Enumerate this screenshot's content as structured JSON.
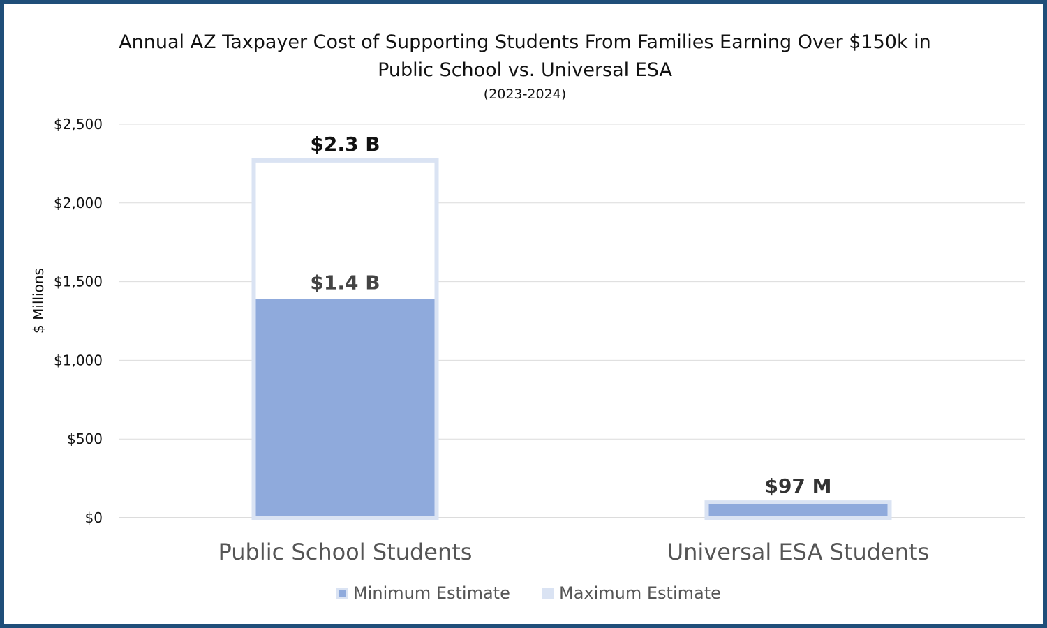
{
  "chart_data": {
    "type": "bar",
    "title_line1": "Annual AZ Taxpayer Cost of Supporting Students From Families Earning Over $150k in",
    "title_line2": "Public School vs. Universal ESA",
    "subtitle": "(2023-2024)",
    "ylabel": "$ Millions",
    "xlabel": "",
    "ylim": [
      0,
      2500
    ],
    "yticks": [
      {
        "value": 0,
        "label": "$0"
      },
      {
        "value": 500,
        "label": "$500"
      },
      {
        "value": 1000,
        "label": "$1,000"
      },
      {
        "value": 1500,
        "label": "$1,500"
      },
      {
        "value": 2000,
        "label": "$2,000"
      },
      {
        "value": 2500,
        "label": "$2,500"
      }
    ],
    "grid": true,
    "legend_position": "bottom",
    "categories": [
      "Public School Students",
      "Universal ESA Students"
    ],
    "series": [
      {
        "name": "Minimum Estimate",
        "color": "#8faadc",
        "values": [
          1390,
          88
        ]
      },
      {
        "name": "Maximum Estimate",
        "color": "#dae3f3",
        "values": [
          2270,
          97
        ]
      }
    ],
    "data_labels": [
      {
        "category_index": 0,
        "series_index": 1,
        "text": "$2.3 B",
        "color": "#111111"
      },
      {
        "category_index": 0,
        "series_index": 0,
        "text": "$1.4 B",
        "color": "#444444"
      },
      {
        "category_index": 1,
        "series_index": 1,
        "text": "$97 M",
        "color": "#333333"
      }
    ]
  }
}
